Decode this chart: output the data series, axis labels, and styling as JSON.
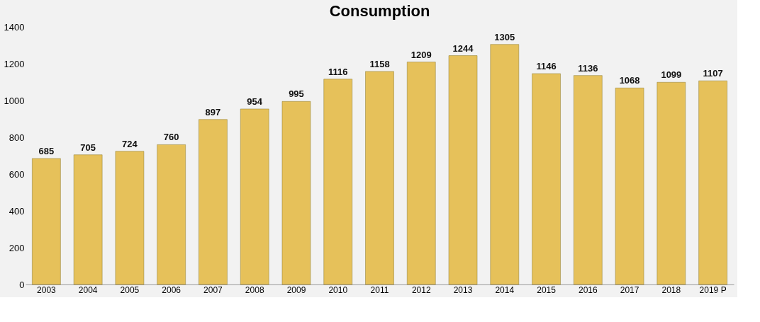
{
  "chart_data": {
    "type": "bar",
    "title": "Consumption",
    "categories": [
      "2003",
      "2004",
      "2005",
      "2006",
      "2007",
      "2008",
      "2009",
      "2010",
      "2011",
      "2012",
      "2013",
      "2014",
      "2015",
      "2016",
      "2017",
      "2018",
      "2019 P"
    ],
    "values": [
      685,
      705,
      724,
      760,
      897,
      954,
      995,
      1116,
      1158,
      1209,
      1244,
      1305,
      1146,
      1136,
      1068,
      1099,
      1107
    ],
    "color": "#e6c15a",
    "ylim": [
      0,
      1400
    ],
    "yticks": [
      0,
      200,
      400,
      600,
      800,
      1000,
      1200,
      1400
    ],
    "data_labels": true,
    "grid": false
  }
}
